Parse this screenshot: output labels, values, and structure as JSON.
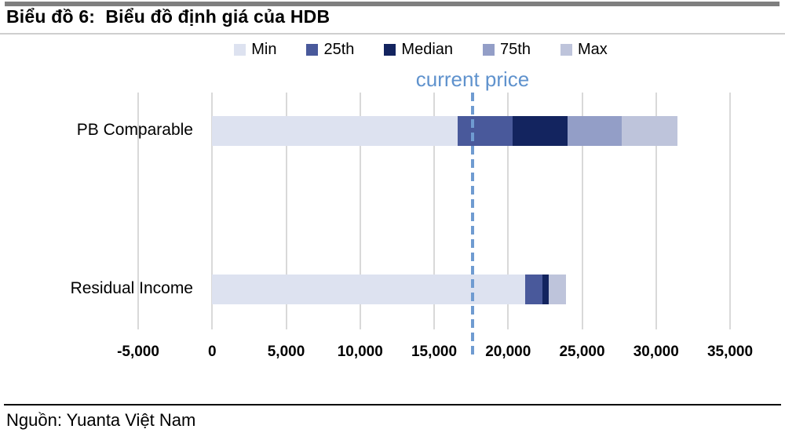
{
  "header": {
    "title": "Biểu đồ 6:  Biểu đồ định giá của HDB"
  },
  "footer": {
    "source": "Nguồn: Yuanta Việt Nam"
  },
  "chart_data": {
    "type": "bar",
    "orientation": "horizontal",
    "stacked": true,
    "title": "Biểu đồ 6:  Biểu đồ định giá của HDB",
    "categories": [
      "PB Comparable",
      "Residual Income"
    ],
    "series": [
      {
        "name": "Min",
        "color": "#dde2f0",
        "values": [
          16600,
          21150
        ]
      },
      {
        "name": "25th",
        "color": "#49599b",
        "values": [
          20300,
          22300
        ]
      },
      {
        "name": "Median",
        "color": "#13245f",
        "values": [
          24000,
          22750
        ]
      },
      {
        "name": "75th",
        "color": "#939ec7",
        "values": [
          27700,
          22750
        ]
      },
      {
        "name": "Max",
        "color": "#bec4db",
        "values": [
          31450,
          23900
        ]
      }
    ],
    "series_value_meaning": "cumulative segment end value",
    "annotation": {
      "label": "current price",
      "value": 17600,
      "line_color": "#6f9bd1",
      "label_color": "#5f92cd"
    },
    "x_ticks": [
      "-5,000",
      "0",
      "5,000",
      "10,000",
      "15,000",
      "20,000",
      "25,000",
      "30,000",
      "35,000"
    ],
    "xlim": [
      -5000,
      35000
    ],
    "xlabel": "",
    "ylabel": "",
    "legend_position": "top",
    "grid": "vertical",
    "gridline_color": "#d9d9d9"
  }
}
